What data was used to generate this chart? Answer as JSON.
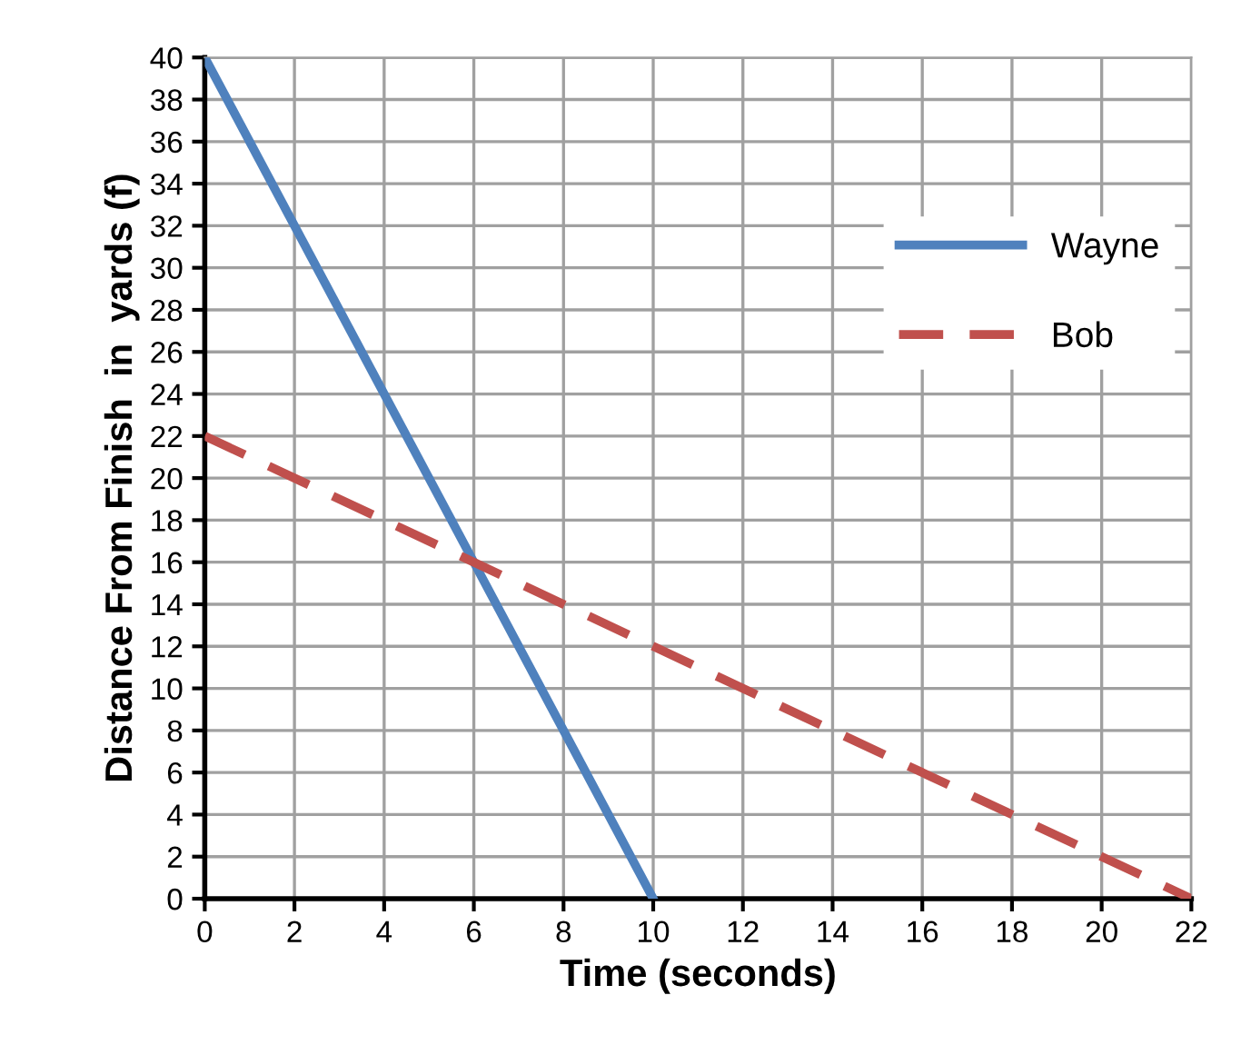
{
  "chart_data": {
    "type": "line",
    "xlabel": "Time (seconds)",
    "ylabel": "Distance From Finish  in  yards (f)",
    "series": [
      {
        "name": "Wayne",
        "color": "#4f81bd",
        "x": [
          0,
          10
        ],
        "values": [
          40,
          0
        ],
        "line_style": "solid"
      },
      {
        "name": "Bob",
        "color": "#c0504d",
        "x": [
          0,
          22
        ],
        "values": [
          22,
          0
        ],
        "line_style": "dashed"
      }
    ],
    "xlim": [
      0,
      22
    ],
    "xticks": [
      0,
      2,
      4,
      6,
      8,
      10,
      12,
      14,
      16,
      18,
      20,
      22
    ],
    "ylim": [
      0,
      40
    ],
    "yticks": [
      0,
      2,
      4,
      6,
      8,
      10,
      12,
      14,
      16,
      18,
      20,
      22,
      24,
      26,
      28,
      30,
      32,
      34,
      36,
      38,
      40
    ],
    "grid": true,
    "legend": "right",
    "marker": "none"
  }
}
